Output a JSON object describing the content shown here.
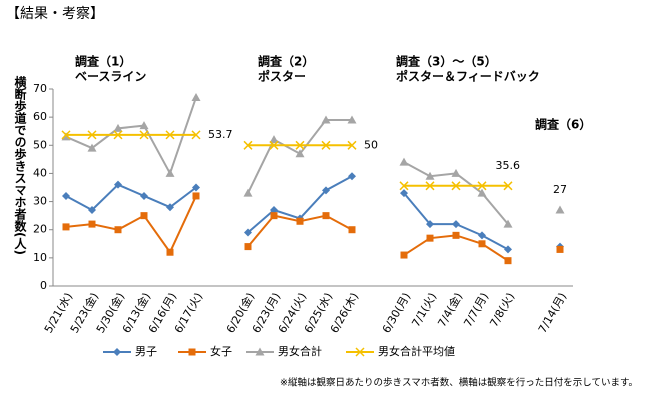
{
  "header": {
    "title": "【結果・考察】"
  },
  "chart_data": {
    "type": "line",
    "y_label": "横断歩道での歩きスマホ者数(人)",
    "categories": [
      "5/21(水)",
      "5/23(金)",
      "5/30(金)",
      "6/13(金)",
      "6/16(月)",
      "6/17(火)",
      null,
      "6/20(金)",
      "6/23(月)",
      "6/24(火)",
      "6/25(水)",
      "6/26(木)",
      null,
      "6/30(月)",
      "7/1(火)",
      "7/4(金)",
      "7/7(月)",
      "7/8(火)",
      null,
      "7/14(月)"
    ],
    "series": [
      {
        "name": "男子",
        "color": "#4a7ebb",
        "marker": "diamond",
        "values": [
          32,
          27,
          36,
          32,
          28,
          35,
          null,
          19,
          27,
          24,
          34,
          39,
          null,
          33,
          22,
          22,
          18,
          13,
          null,
          14
        ]
      },
      {
        "name": "女子",
        "color": "#e46c0a",
        "marker": "square",
        "values": [
          21,
          22,
          20,
          25,
          12,
          32,
          null,
          14,
          25,
          23,
          25,
          20,
          null,
          11,
          17,
          18,
          15,
          9,
          null,
          13
        ]
      },
      {
        "name": "男女合計",
        "color": "#a5a5a5",
        "marker": "triangle",
        "values": [
          53,
          49,
          56,
          57,
          40,
          67,
          null,
          33,
          52,
          47,
          59,
          59,
          null,
          44,
          39,
          40,
          33,
          22,
          null,
          27
        ]
      },
      {
        "name": "男女合計平均値",
        "color": "#f5c000",
        "marker": "x",
        "values": [
          53.7,
          53.7,
          53.7,
          53.7,
          53.7,
          53.7,
          null,
          50,
          50,
          50,
          50,
          50,
          null,
          35.6,
          35.6,
          35.6,
          35.6,
          35.6,
          null,
          null
        ]
      }
    ],
    "ylim": [
      0,
      70
    ],
    "yticks": [
      0,
      10,
      20,
      30,
      40,
      50,
      60,
      70
    ],
    "grid": false,
    "annotations": [
      "調査（1）",
      "ベースライン",
      "調査（2）",
      "ポスター",
      "調査（3）～（5）",
      "ポスター＆フィードバック",
      "調査（6）"
    ],
    "note": "※縦軸は観察日あたりの歩きスマホ者数、横軸は観察を行った日付を示しています。"
  }
}
